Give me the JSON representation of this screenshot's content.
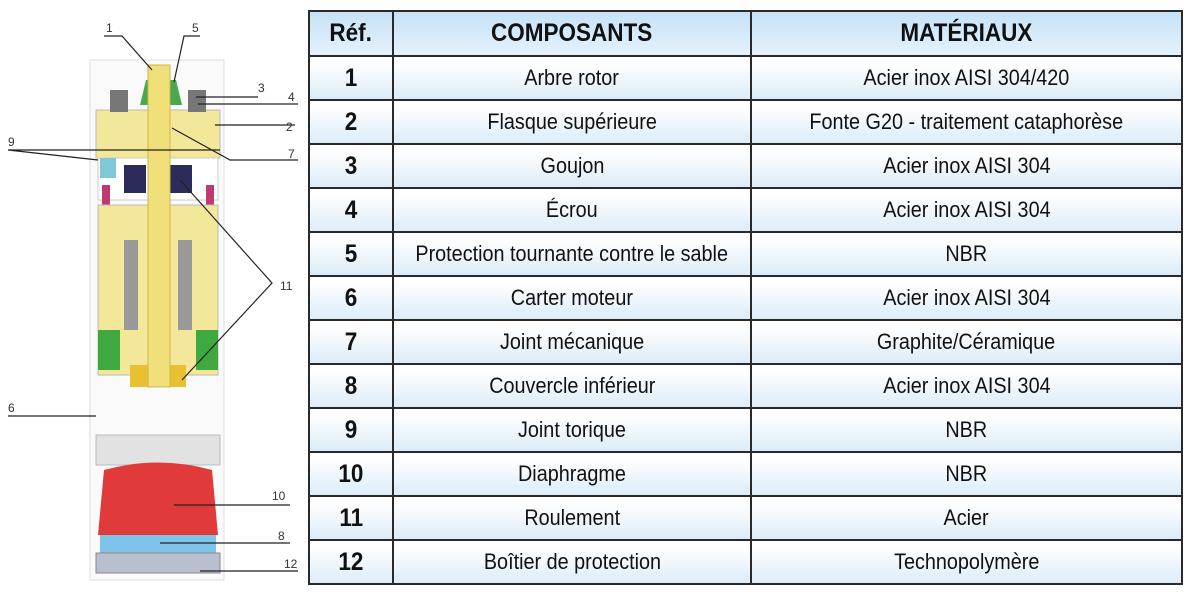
{
  "diagram": {
    "callouts": [
      "1",
      "2",
      "3",
      "4",
      "5",
      "6",
      "7",
      "8",
      "9",
      "10",
      "11",
      "12"
    ]
  },
  "table": {
    "headers": {
      "ref": "Réf.",
      "components": "COMPOSANTS",
      "materials": "MATÉRIAUX"
    },
    "rows": [
      {
        "ref": "1",
        "component": "Arbre rotor",
        "material": "Acier inox AISI 304/420"
      },
      {
        "ref": "2",
        "component": "Flasque supérieure",
        "material": "Fonte G20 - traitement cataphorèse"
      },
      {
        "ref": "3",
        "component": "Goujon",
        "material": "Acier inox AISI 304"
      },
      {
        "ref": "4",
        "component": "Écrou",
        "material": "Acier inox AISI 304"
      },
      {
        "ref": "5",
        "component": "Protection tournante contre le sable",
        "material": "NBR"
      },
      {
        "ref": "6",
        "component": "Carter moteur",
        "material": "Acier inox AISI 304"
      },
      {
        "ref": "7",
        "component": "Joint mécanique",
        "material": "Graphite/Céramique"
      },
      {
        "ref": "8",
        "component": "Couvercle inférieur",
        "material": "Acier inox AISI 304"
      },
      {
        "ref": "9",
        "component": "Joint torique",
        "material": "NBR"
      },
      {
        "ref": "10",
        "component": "Diaphragme",
        "material": "NBR"
      },
      {
        "ref": "11",
        "component": "Roulement",
        "material": "Acier"
      },
      {
        "ref": "12",
        "component": "Boîtier de protection",
        "material": "Technopolymère"
      }
    ]
  }
}
